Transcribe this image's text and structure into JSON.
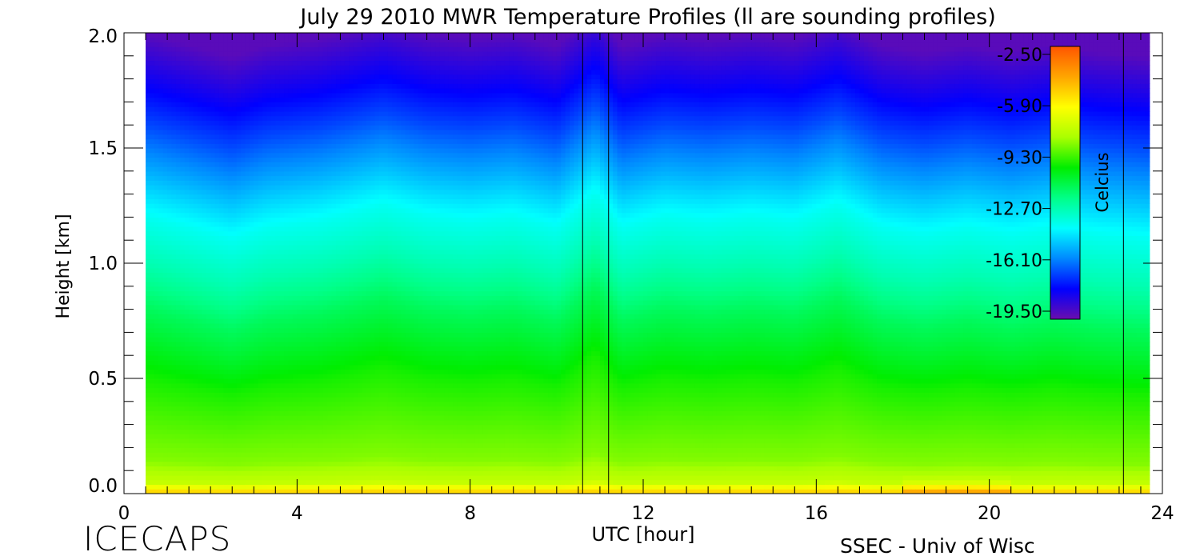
{
  "chart_data": {
    "type": "heatmap",
    "title": "July 29 2010 MWR Temperature Profiles (ll are sounding profiles)",
    "xlabel": "UTC [hour]",
    "ylabel": "Height [km]",
    "xlim": [
      0,
      24
    ],
    "ylim": [
      0,
      2.0
    ],
    "x_ticks": [
      "0",
      "4",
      "8",
      "12",
      "16",
      "20",
      "24"
    ],
    "y_ticks": [
      "0.0",
      "0.5",
      "1.0",
      "1.5",
      "2.0"
    ],
    "data_range_hours": [
      0.5,
      23.7
    ],
    "sounding_lines_hours": [
      10.6,
      11.2,
      23.1
    ],
    "colorbar": {
      "label": "Celcius",
      "ticks": [
        "-2.50",
        "-5.90",
        "-9.30",
        "-12.70",
        "-16.10",
        "-19.50"
      ],
      "range": [
        -19.5,
        -2.5
      ],
      "colors": [
        "#6a0dad",
        "#0000ff",
        "#0088ff",
        "#00ffff",
        "#00ff88",
        "#00ee00",
        "#aaff00",
        "#ffff00",
        "#ffa500",
        "#ff5500"
      ]
    },
    "profile_temperatures": {
      "heights_km": [
        0.0,
        0.05,
        0.15,
        0.3,
        0.5,
        0.8,
        1.0,
        1.2,
        1.4,
        1.6,
        1.8,
        2.0
      ],
      "celsius": [
        -5.0,
        -7.6,
        -8.6,
        -9.1,
        -9.8,
        -11.3,
        -12.6,
        -13.6,
        -15.1,
        -16.6,
        -17.9,
        -19.2
      ]
    },
    "times_hours": [
      0.5,
      1.5,
      2.5,
      3.3,
      4.5,
      6.0,
      7.0,
      8.0,
      9.0,
      10.0,
      10.9,
      11.5,
      12.5,
      13.5,
      14.5,
      15.5,
      16.5,
      17.5,
      18.5,
      19.5,
      20.5,
      21.5,
      22.5,
      23.7
    ],
    "height_offsets_km": [
      0.0,
      -0.05,
      -0.1,
      -0.05,
      -0.02,
      0.05,
      0.0,
      -0.02,
      0.0,
      -0.05,
      0.1,
      -0.05,
      0.0,
      -0.02,
      0.0,
      -0.02,
      0.05,
      -0.05,
      -0.08,
      -0.05,
      -0.08,
      -0.05,
      -0.08,
      -0.1
    ],
    "surface_warm_hours": [
      18.0,
      20.5
    ]
  },
  "footer": {
    "left_text": "ICECAPS",
    "right_text": "SSEC - Univ of Wisc"
  }
}
